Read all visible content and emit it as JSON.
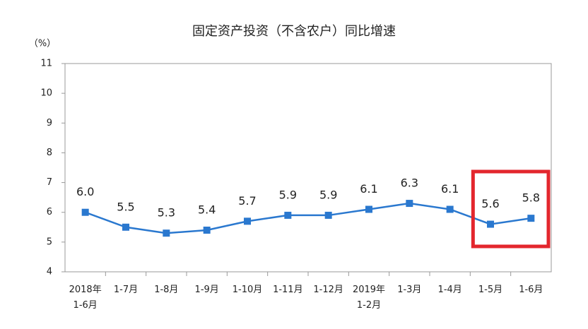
{
  "chart_data": {
    "type": "line",
    "title": "固定资产投资（不含农户）同比增速",
    "y_label": "（%）",
    "categories": [
      "2018年\n1-6月",
      "1-7月",
      "1-8月",
      "1-9月",
      "1-10月",
      "1-11月",
      "1-12月",
      "2019年\n1-2月",
      "1-3月",
      "1-4月",
      "1-5月",
      "1-6月"
    ],
    "series": [
      {
        "color": "#2a78cf",
        "values": [
          6.0,
          5.5,
          5.3,
          5.4,
          5.7,
          5.9,
          5.9,
          6.1,
          6.3,
          6.1,
          5.6,
          5.8
        ],
        "value_labels": [
          "6.0",
          "5.5",
          "5.3",
          "5.4",
          "5.7",
          "5.9",
          "5.9",
          "6.1",
          "6.3",
          "6.1",
          "5.6",
          "5.8"
        ]
      }
    ],
    "ylim": [
      4,
      11
    ],
    "yticks": [
      4,
      5,
      6,
      7,
      8,
      9,
      10,
      11
    ],
    "grid": false,
    "highlight_color": "#e3262d"
  }
}
